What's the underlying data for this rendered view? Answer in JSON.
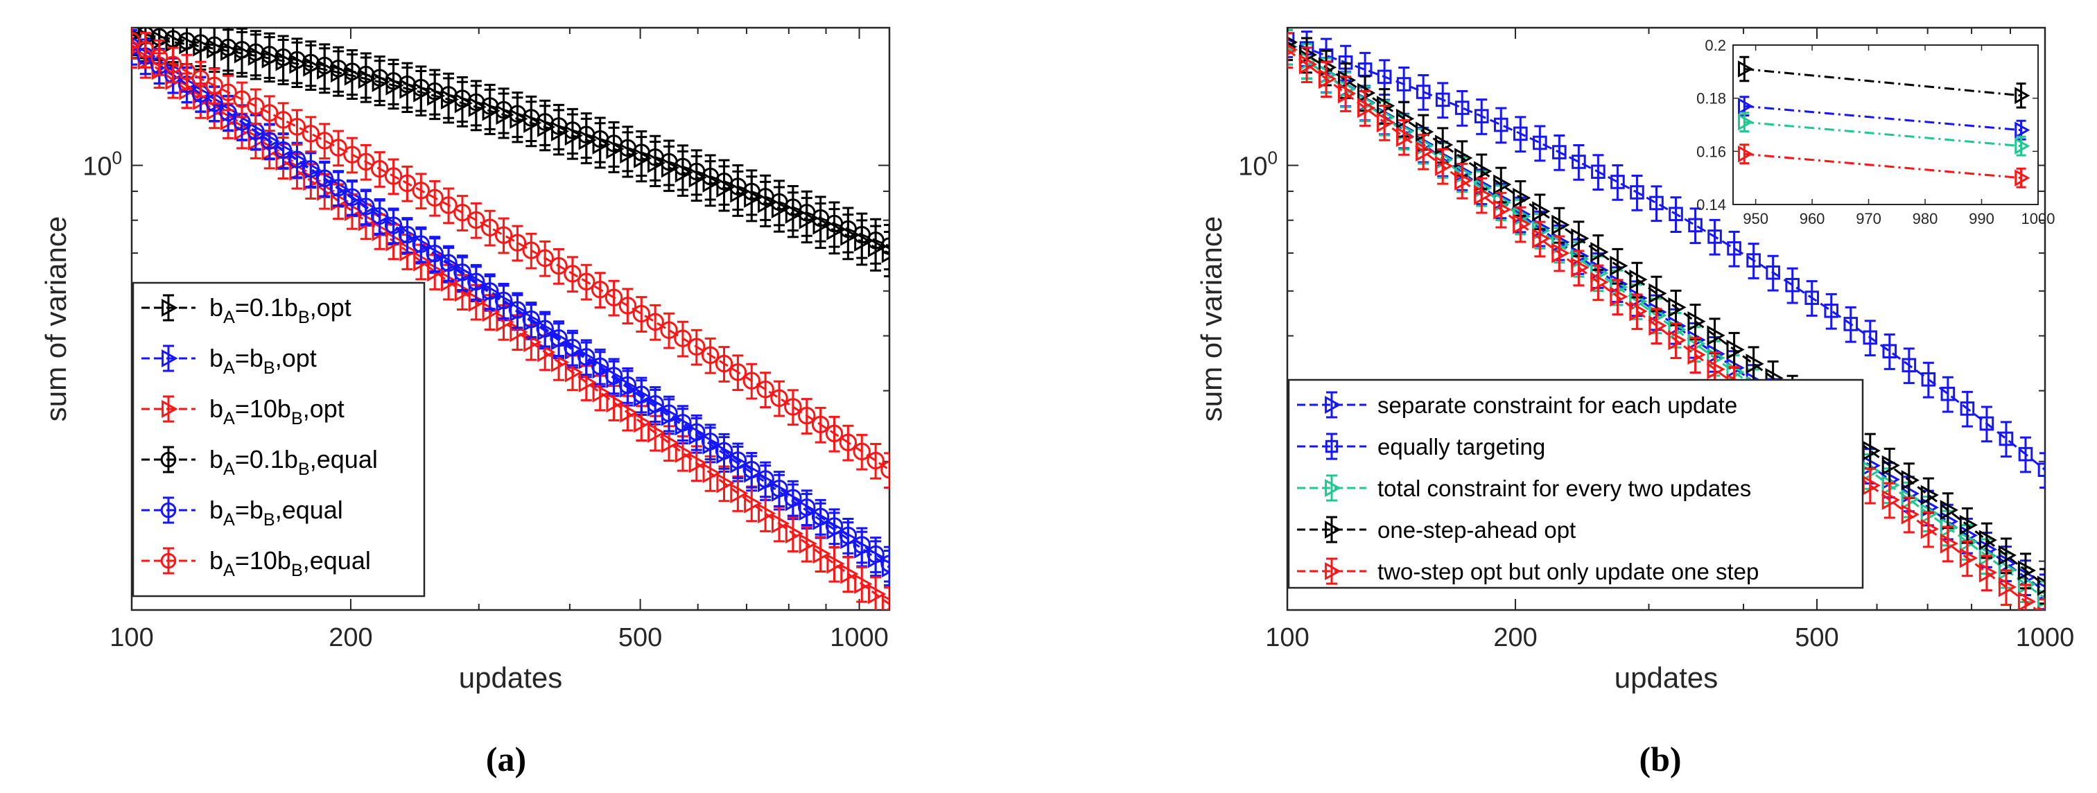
{
  "chart_data": [
    {
      "id": "a",
      "type": "line",
      "caption": "(a)",
      "xlabel": "updates",
      "ylabel": "sum of variance",
      "xscale": "log",
      "yscale": "log",
      "xlim": [
        100,
        1100
      ],
      "ylim": [
        0.164,
        1.75
      ],
      "xticks": [
        100,
        200,
        500,
        1000
      ],
      "xtick_labels": [
        "100",
        "200",
        "500",
        "1000"
      ],
      "yticks": [
        1.0
      ],
      "ytick_base": "10",
      "ytick_exp": "0",
      "legend_position": "lower-left",
      "series": [
        {
          "name": "b_A=0.1b_B,opt",
          "label_parts": [
            "b",
            "A",
            "=0.1b",
            "B",
            ",opt"
          ],
          "color": "#000000",
          "marker": "triangle-right",
          "n1": 1.7,
          "e1": 0.17,
          "n2": 0.7,
          "e2": 0.64,
          "err": 0.09
        },
        {
          "name": "b_A=b_B,opt",
          "label_parts": [
            "b",
            "A",
            "=b",
            "B",
            ",opt"
          ],
          "color": "#1515ff",
          "marker": "triangle-right",
          "n1": 1.62,
          "e1": 1.0,
          "n2": 0.195,
          "e2": 1.02,
          "err": 0.07
        },
        {
          "name": "b_A=10b_B,opt",
          "label_parts": [
            "b",
            "A",
            "=10b",
            "B",
            ",opt"
          ],
          "color": "#ff1515",
          "marker": "triangle-right",
          "n1": 1.6,
          "e1": 1.0,
          "n2": 0.168,
          "e2": 1.0,
          "err": 0.07
        },
        {
          "name": "b_A=0.1b_B,equal",
          "label_parts": [
            "b",
            "A",
            "=0.1b",
            "B",
            ",equal"
          ],
          "color": "#000000",
          "marker": "circle",
          "n1": 1.72,
          "e1": 0.17,
          "n2": 0.72,
          "e2": 0.65,
          "err": 0.09
        },
        {
          "name": "b_A=b_B,equal",
          "label_parts": [
            "b",
            "A",
            "=b",
            "B",
            ",equal"
          ],
          "color": "#1515ff",
          "marker": "circle",
          "n1": 1.62,
          "e1": 1.0,
          "n2": 0.198,
          "e2": 0.98,
          "err": 0.07
        },
        {
          "name": "b_A=10b_B,equal",
          "label_parts": [
            "b",
            "A",
            "=10b",
            "B",
            ",equal"
          ],
          "color": "#ff1515",
          "marker": "circle",
          "n1": 1.66,
          "e1": 0.7,
          "n2": 0.29,
          "e2": 0.88,
          "err": 0.07
        }
      ]
    },
    {
      "id": "b",
      "type": "line",
      "caption": "(b)",
      "xlabel": "updates",
      "ylabel": "sum of variance",
      "xscale": "log",
      "yscale": "log",
      "xlim": [
        100,
        1000
      ],
      "ylim": [
        0.164,
        1.75
      ],
      "xticks": [
        100,
        200,
        500,
        1000
      ],
      "xtick_labels": [
        "100",
        "200",
        "500",
        "1000"
      ],
      "yticks": [
        1.0
      ],
      "ytick_base": "10",
      "ytick_exp": "0",
      "legend_position": "lower-left",
      "series": [
        {
          "name": "separate constraint for each update",
          "color": "#1515ff",
          "marker": "triangle-right",
          "n1": 1.62,
          "e1": 1.0,
          "n2": 0.177,
          "e2": 1.0,
          "err": 0.07
        },
        {
          "name": "equally targeting",
          "color": "#1515ff",
          "marker": "square",
          "n1": 1.67,
          "e1": 0.35,
          "n2": 0.29,
          "e2": 0.78,
          "err": 0.07
        },
        {
          "name": "total constraint for every two updates",
          "color": "#20c890",
          "marker": "triangle-right",
          "n1": 1.62,
          "e1": 1.0,
          "n2": 0.172,
          "e2": 1.0,
          "err": 0.07
        },
        {
          "name": "one-step-ahead opt",
          "color": "#000000",
          "marker": "triangle-right",
          "n1": 1.65,
          "e1": 0.9,
          "n2": 0.181,
          "e2": 1.0,
          "err": 0.07
        },
        {
          "name": "two-step opt but only update one step",
          "color": "#ff1515",
          "marker": "triangle-right",
          "n1": 1.6,
          "e1": 1.0,
          "n2": 0.16,
          "e2": 1.0,
          "err": 0.07
        }
      ],
      "inset": {
        "xlim": [
          946,
          1000
        ],
        "ylim": [
          0.14,
          0.2
        ],
        "xticks": [
          950,
          960,
          970,
          980,
          990,
          1000
        ],
        "yticks": [
          0.14,
          0.16,
          0.18,
          0.2
        ],
        "ytick_labels": [
          "0.14",
          "0.16",
          "0.18",
          "0.2"
        ],
        "series": [
          {
            "color": "#000000",
            "x": [
              948,
              997
            ],
            "y": [
              0.191,
              0.181
            ],
            "err": 0.0045
          },
          {
            "color": "#1515ff",
            "x": [
              948,
              997
            ],
            "y": [
              0.177,
              0.168
            ],
            "err": 0.0035
          },
          {
            "color": "#20c890",
            "x": [
              948,
              997
            ],
            "y": [
              0.171,
              0.162
            ],
            "err": 0.0035
          },
          {
            "color": "#ff1515",
            "x": [
              948,
              997
            ],
            "y": [
              0.159,
              0.15
            ],
            "err": 0.0035
          }
        ]
      }
    }
  ]
}
